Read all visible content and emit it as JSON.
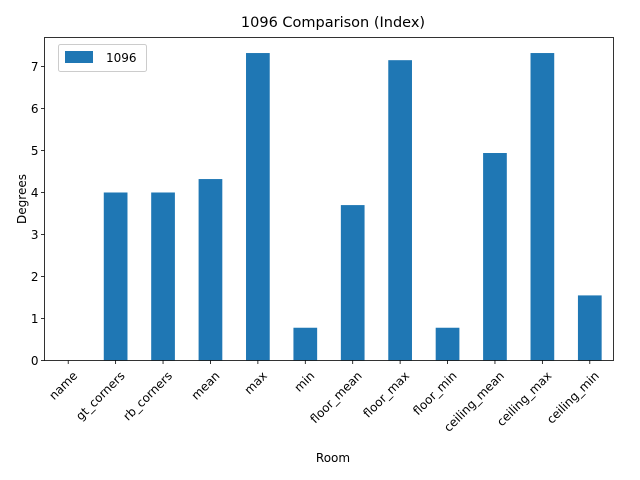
{
  "chart_data": {
    "type": "bar",
    "title": "1096 Comparison (Index)",
    "xlabel": "Room",
    "ylabel": "Degrees",
    "categories": [
      "name",
      "gt_corners",
      "rb_corners",
      "mean",
      "max",
      "min",
      "floor_mean",
      "floor_max",
      "floor_min",
      "ceiling_mean",
      "ceiling_max",
      "ceiling_min"
    ],
    "series": [
      {
        "name": "1096",
        "color": "#1f77b4",
        "values": [
          0,
          4.0,
          4.0,
          4.32,
          7.32,
          0.78,
          3.7,
          7.15,
          0.78,
          4.94,
          7.32,
          1.55
        ]
      }
    ],
    "ylim": [
      0,
      7.69
    ],
    "yticks": [
      0,
      1,
      2,
      3,
      4,
      5,
      6,
      7
    ],
    "grid": false,
    "legend": "top-left"
  }
}
